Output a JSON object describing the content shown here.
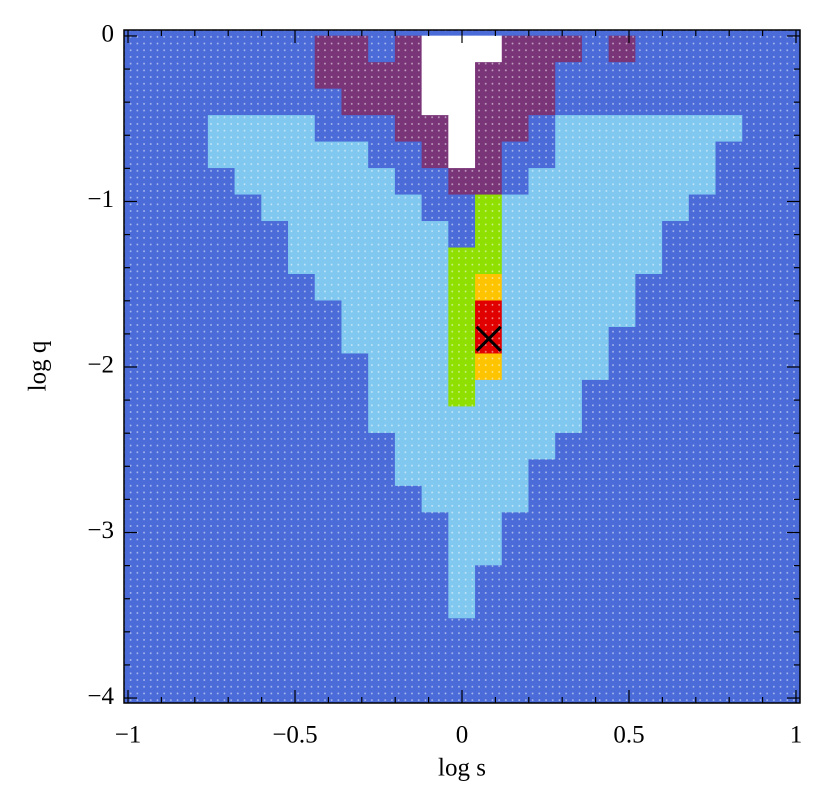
{
  "chart_data": {
    "type": "heatmap",
    "xlabel": "log s",
    "ylabel": "log q",
    "xlim": [
      -1.012,
      1.012
    ],
    "ylim": [
      -4.03,
      0.036
    ],
    "xticks": [
      {
        "value": -1,
        "label": "−1"
      },
      {
        "value": -0.5,
        "label": "−0.5"
      },
      0,
      0.5,
      1
    ],
    "yticks": [
      0,
      {
        "value": -1,
        "label": "−1"
      },
      {
        "value": -2,
        "label": "−2"
      },
      {
        "value": -3,
        "label": "−3"
      },
      {
        "value": -4,
        "label": "−4"
      }
    ],
    "xminorticks": [
      -0.9,
      -0.8,
      -0.7,
      -0.6,
      -0.4,
      -0.3,
      -0.2,
      -0.1,
      0.1,
      0.2,
      0.3,
      0.4,
      0.6,
      0.7,
      0.8,
      0.9
    ],
    "yminorticks": [
      -0.2,
      -0.4,
      -0.6,
      -0.8,
      -1.2,
      -1.4,
      -1.6,
      -1.8,
      -2.2,
      -2.4,
      -2.6,
      -2.8,
      -3.2,
      -3.4,
      -3.6,
      -3.8
    ],
    "colors": [
      "#4a6bd8",
      "#80c8ef",
      "#7a3578",
      "#ffffff",
      "#8fe000",
      "#ffc400",
      "#e00000"
    ],
    "x": [
      -0.96,
      -0.88,
      -0.8,
      -0.72,
      -0.64,
      -0.56,
      -0.48,
      -0.4,
      -0.32,
      -0.24,
      -0.16,
      -0.08,
      0,
      0.08,
      0.16,
      0.24,
      0.32,
      0.4,
      0.48,
      0.56,
      0.64,
      0.72,
      0.8,
      0.88,
      0.96
    ],
    "y": [
      -0.08,
      -0.24,
      -0.4,
      -0.56,
      -0.72,
      -0.88,
      -1.04,
      -1.2,
      -1.36,
      -1.52,
      -1.68,
      -1.84,
      -2,
      -2.16,
      -2.32,
      -2.48,
      -2.64,
      -2.8,
      -2.96,
      -3.12,
      -3.28,
      -3.44,
      -3.6,
      -3.76,
      -3.92
    ],
    "z": [
      [
        0,
        0,
        0,
        0,
        0,
        0,
        0,
        2,
        2,
        0,
        2,
        3,
        3,
        3,
        2,
        2,
        2,
        0,
        2,
        0,
        0,
        0,
        0,
        0,
        0
      ],
      [
        0,
        0,
        0,
        0,
        0,
        0,
        0,
        2,
        2,
        2,
        2,
        3,
        3,
        2,
        2,
        2,
        0,
        0,
        0,
        0,
        0,
        0,
        0,
        0,
        0
      ],
      [
        0,
        0,
        0,
        0,
        0,
        0,
        0,
        0,
        2,
        2,
        2,
        3,
        3,
        2,
        2,
        2,
        0,
        0,
        0,
        0,
        0,
        0,
        0,
        0,
        0
      ],
      [
        0,
        0,
        0,
        1,
        1,
        1,
        1,
        0,
        0,
        0,
        2,
        2,
        3,
        2,
        2,
        0,
        1,
        1,
        1,
        1,
        1,
        1,
        1,
        0,
        0
      ],
      [
        0,
        0,
        0,
        1,
        1,
        1,
        1,
        1,
        1,
        0,
        0,
        2,
        3,
        2,
        0,
        0,
        1,
        1,
        1,
        1,
        1,
        1,
        0,
        0,
        0
      ],
      [
        0,
        0,
        0,
        0,
        1,
        1,
        1,
        1,
        1,
        1,
        0,
        0,
        2,
        2,
        0,
        1,
        1,
        1,
        1,
        1,
        1,
        1,
        0,
        0,
        0
      ],
      [
        0,
        0,
        0,
        0,
        0,
        1,
        1,
        1,
        1,
        1,
        1,
        0,
        0,
        4,
        1,
        1,
        1,
        1,
        1,
        1,
        1,
        0,
        0,
        0,
        0
      ],
      [
        0,
        0,
        0,
        0,
        0,
        0,
        1,
        1,
        1,
        1,
        1,
        1,
        0,
        4,
        1,
        1,
        1,
        1,
        1,
        1,
        0,
        0,
        0,
        0,
        0
      ],
      [
        0,
        0,
        0,
        0,
        0,
        0,
        1,
        1,
        1,
        1,
        1,
        1,
        4,
        4,
        1,
        1,
        1,
        1,
        1,
        1,
        0,
        0,
        0,
        0,
        0
      ],
      [
        0,
        0,
        0,
        0,
        0,
        0,
        0,
        1,
        1,
        1,
        1,
        1,
        4,
        5,
        1,
        1,
        1,
        1,
        1,
        0,
        0,
        0,
        0,
        0,
        0
      ],
      [
        0,
        0,
        0,
        0,
        0,
        0,
        0,
        0,
        1,
        1,
        1,
        1,
        4,
        6,
        1,
        1,
        1,
        1,
        1,
        0,
        0,
        0,
        0,
        0,
        0
      ],
      [
        0,
        0,
        0,
        0,
        0,
        0,
        0,
        0,
        1,
        1,
        1,
        1,
        4,
        6,
        1,
        1,
        1,
        1,
        0,
        0,
        0,
        0,
        0,
        0,
        0
      ],
      [
        0,
        0,
        0,
        0,
        0,
        0,
        0,
        0,
        0,
        1,
        1,
        1,
        4,
        5,
        1,
        1,
        1,
        1,
        0,
        0,
        0,
        0,
        0,
        0,
        0
      ],
      [
        0,
        0,
        0,
        0,
        0,
        0,
        0,
        0,
        0,
        1,
        1,
        1,
        4,
        1,
        1,
        1,
        1,
        0,
        0,
        0,
        0,
        0,
        0,
        0,
        0
      ],
      [
        0,
        0,
        0,
        0,
        0,
        0,
        0,
        0,
        0,
        1,
        1,
        1,
        1,
        1,
        1,
        1,
        1,
        0,
        0,
        0,
        0,
        0,
        0,
        0,
        0
      ],
      [
        0,
        0,
        0,
        0,
        0,
        0,
        0,
        0,
        0,
        0,
        1,
        1,
        1,
        1,
        1,
        1,
        0,
        0,
        0,
        0,
        0,
        0,
        0,
        0,
        0
      ],
      [
        0,
        0,
        0,
        0,
        0,
        0,
        0,
        0,
        0,
        0,
        1,
        1,
        1,
        1,
        1,
        0,
        0,
        0,
        0,
        0,
        0,
        0,
        0,
        0,
        0
      ],
      [
        0,
        0,
        0,
        0,
        0,
        0,
        0,
        0,
        0,
        0,
        0,
        1,
        1,
        1,
        1,
        0,
        0,
        0,
        0,
        0,
        0,
        0,
        0,
        0,
        0
      ],
      [
        0,
        0,
        0,
        0,
        0,
        0,
        0,
        0,
        0,
        0,
        0,
        0,
        1,
        1,
        0,
        0,
        0,
        0,
        0,
        0,
        0,
        0,
        0,
        0,
        0
      ],
      [
        0,
        0,
        0,
        0,
        0,
        0,
        0,
        0,
        0,
        0,
        0,
        0,
        1,
        1,
        0,
        0,
        0,
        0,
        0,
        0,
        0,
        0,
        0,
        0,
        0
      ],
      [
        0,
        0,
        0,
        0,
        0,
        0,
        0,
        0,
        0,
        0,
        0,
        0,
        1,
        0,
        0,
        0,
        0,
        0,
        0,
        0,
        0,
        0,
        0,
        0,
        0
      ],
      [
        0,
        0,
        0,
        0,
        0,
        0,
        0,
        0,
        0,
        0,
        0,
        0,
        1,
        0,
        0,
        0,
        0,
        0,
        0,
        0,
        0,
        0,
        0,
        0,
        0
      ],
      [
        0,
        0,
        0,
        0,
        0,
        0,
        0,
        0,
        0,
        0,
        0,
        0,
        0,
        0,
        0,
        0,
        0,
        0,
        0,
        0,
        0,
        0,
        0,
        0,
        0
      ],
      [
        0,
        0,
        0,
        0,
        0,
        0,
        0,
        0,
        0,
        0,
        0,
        0,
        0,
        0,
        0,
        0,
        0,
        0,
        0,
        0,
        0,
        0,
        0,
        0,
        0
      ],
      [
        0,
        0,
        0,
        0,
        0,
        0,
        0,
        0,
        0,
        0,
        0,
        0,
        0,
        0,
        0,
        0,
        0,
        0,
        0,
        0,
        0,
        0,
        0,
        0,
        0
      ]
    ],
    "marker": {
      "x": 0.08,
      "y": -1.83
    }
  }
}
